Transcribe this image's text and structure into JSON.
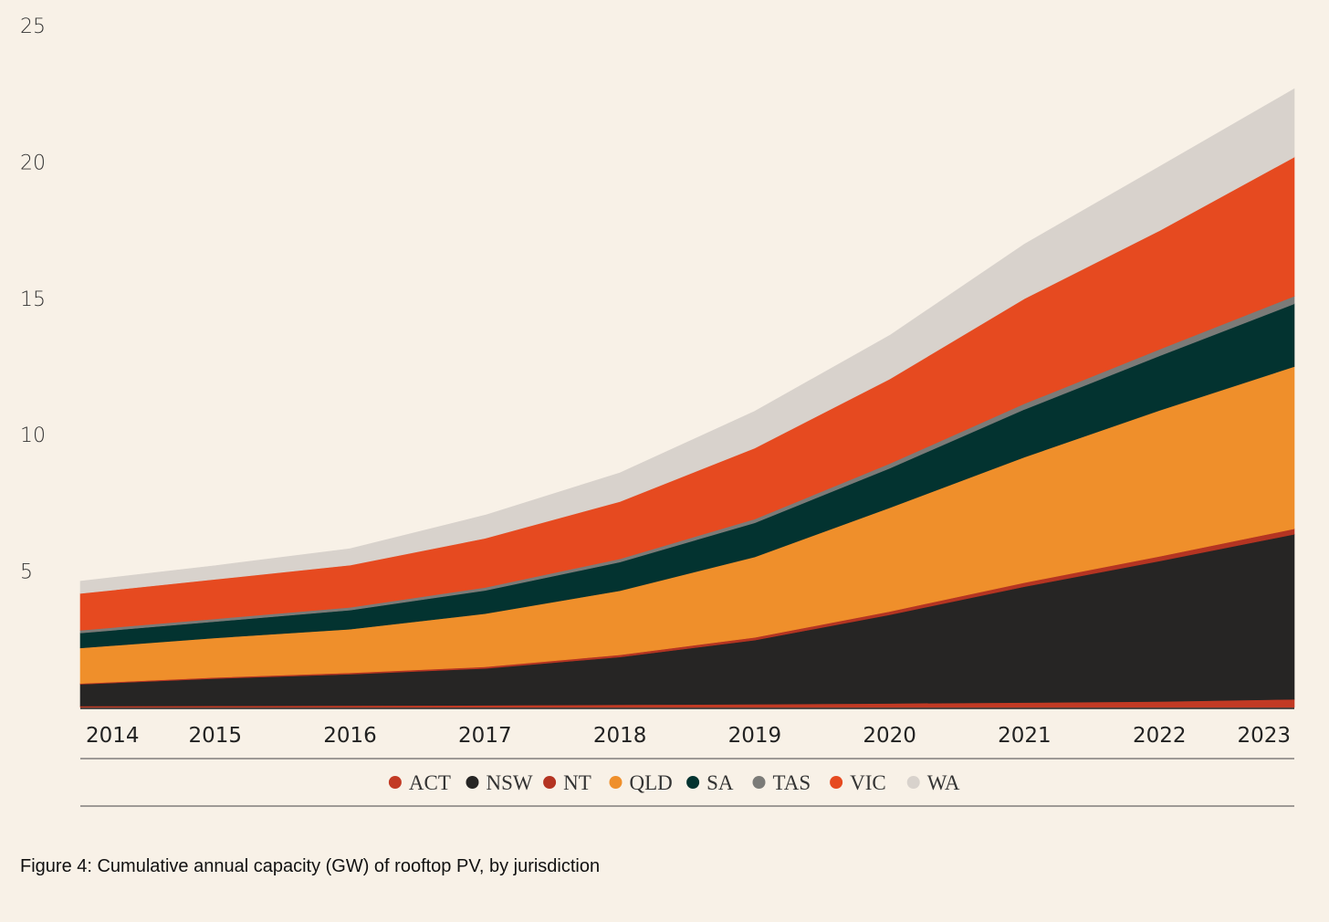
{
  "caption": "Figure 4: Cumulative annual capacity (GW) of rooftop PV, by jurisdiction",
  "chart_data": {
    "type": "area",
    "stacked": true,
    "x": [
      "2014",
      "2015",
      "2016",
      "2017",
      "2018",
      "2019",
      "2020",
      "2021",
      "2022",
      "2023"
    ],
    "ylim": [
      0,
      25
    ],
    "yticks": [
      5,
      10,
      15,
      20,
      25
    ],
    "grid": false,
    "legend_position": "bottom",
    "series": [
      {
        "name": "ACT",
        "color": "#c23a24",
        "values": [
          0.05,
          0.06,
          0.07,
          0.08,
          0.1,
          0.12,
          0.15,
          0.18,
          0.22,
          0.3
        ]
      },
      {
        "name": "NSW",
        "color": "#262524",
        "values": [
          0.8,
          1.0,
          1.15,
          1.35,
          1.75,
          2.35,
          3.25,
          4.25,
          5.15,
          6.05
        ]
      },
      {
        "name": "NT",
        "color": "#b43422",
        "values": [
          0.03,
          0.04,
          0.05,
          0.06,
          0.08,
          0.1,
          0.12,
          0.15,
          0.17,
          0.2
        ]
      },
      {
        "name": "QLD",
        "color": "#ef8f2b",
        "values": [
          1.3,
          1.45,
          1.6,
          1.95,
          2.35,
          2.95,
          3.8,
          4.6,
          5.35,
          5.95
        ]
      },
      {
        "name": "SA",
        "color": "#033330",
        "values": [
          0.55,
          0.6,
          0.7,
          0.85,
          1.05,
          1.25,
          1.45,
          1.75,
          2.0,
          2.3
        ]
      },
      {
        "name": "TAS",
        "color": "#7b7b78",
        "values": [
          0.1,
          0.1,
          0.1,
          0.11,
          0.12,
          0.14,
          0.17,
          0.21,
          0.24,
          0.28
        ]
      },
      {
        "name": "VIC",
        "color": "#e64a20",
        "values": [
          1.35,
          1.45,
          1.55,
          1.8,
          2.1,
          2.6,
          3.1,
          3.85,
          4.35,
          5.1
        ]
      },
      {
        "name": "WA",
        "color": "#d8d2cc",
        "values": [
          0.45,
          0.5,
          0.6,
          0.85,
          1.05,
          1.35,
          1.6,
          2.0,
          2.35,
          2.5
        ]
      }
    ]
  }
}
